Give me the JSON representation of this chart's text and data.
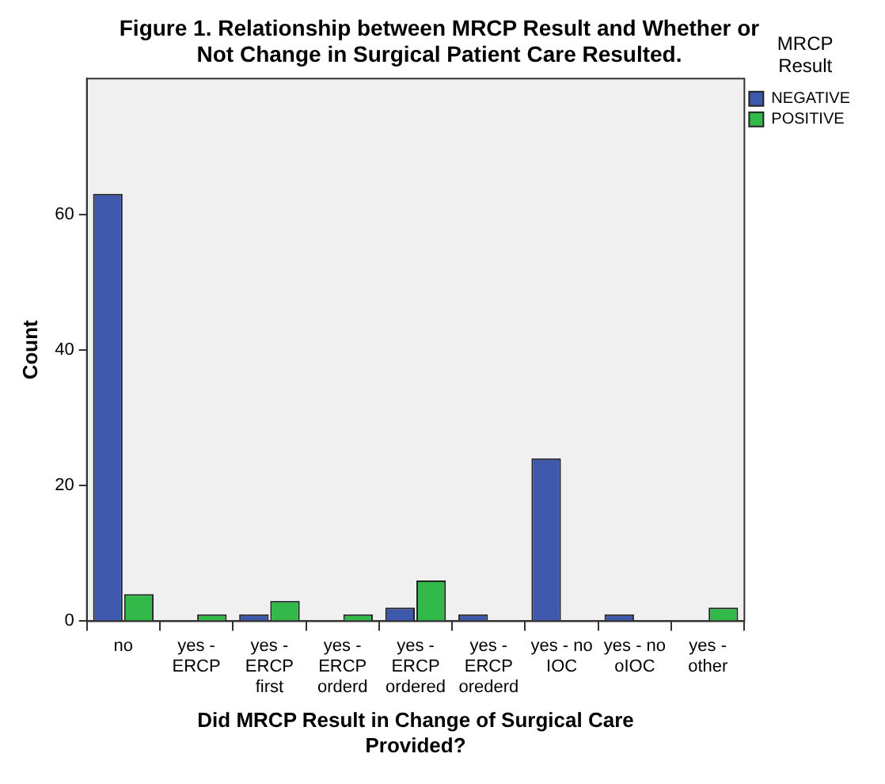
{
  "chart_data": {
    "type": "bar",
    "title": "Figure 1. Relationship between MRCP Result and Whether or Not Change in Surgical Patient Care Resulted.",
    "xlabel": "Did MRCP Result in Change of Surgical Care Provided?",
    "ylabel": "Count",
    "legend_title": "MRCP Result",
    "categories": [
      "no",
      "yes - ERCP",
      "yes - ERCP first",
      "yes - ERCP orderd",
      "yes - ERCP ordered",
      "yes - ERCP orederd",
      "yes - no IOC",
      "yes - no oIOC",
      "yes - other"
    ],
    "series": [
      {
        "name": "NEGATIVE",
        "color": "#3e58ac",
        "values": [
          63,
          0,
          1,
          0,
          2,
          1,
          24,
          1,
          0
        ]
      },
      {
        "name": "POSITIVE",
        "color": "#33b84a",
        "values": [
          4,
          1,
          3,
          1,
          6,
          0,
          0,
          0,
          2
        ]
      }
    ],
    "ylim": [
      0,
      80
    ],
    "yticks": [
      0,
      20,
      40,
      60
    ],
    "grid": false,
    "legend": "right"
  }
}
